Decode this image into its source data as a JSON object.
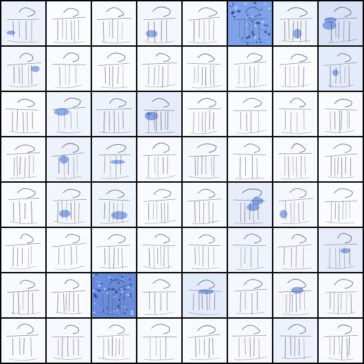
{
  "grid": {
    "rows": 8,
    "cols": 8,
    "stroke_color": "#3a3f4a",
    "accent_blue": "#3d6fd6",
    "background": "#000000",
    "tile_background": "#ffffff",
    "tiles": [
      {
        "tint": "#2f5fd0",
        "tint_level": 0.15,
        "blobs": 1
      },
      {
        "tint": "#2f5fd0",
        "tint_level": 0.03,
        "blobs": 0
      },
      {
        "tint": "#2f5fd0",
        "tint_level": 0.05,
        "blobs": 0
      },
      {
        "tint": "#2f5fd0",
        "tint_level": 0.1,
        "blobs": 1
      },
      {
        "tint": "#2f5fd0",
        "tint_level": 0.05,
        "blobs": 0
      },
      {
        "tint": "#3f73e0",
        "tint_level": 0.75,
        "blobs": 0,
        "textured": true
      },
      {
        "tint": "#2f5fd0",
        "tint_level": 0.12,
        "blobs": 1
      },
      {
        "tint": "#2f5fd0",
        "tint_level": 0.3,
        "blobs": 2
      },
      {
        "tint": "#2f5fd0",
        "tint_level": 0.1,
        "blobs": 1
      },
      {
        "tint": "#2f5fd0",
        "tint_level": 0.05,
        "blobs": 0
      },
      {
        "tint": "#2f5fd0",
        "tint_level": 0.03,
        "blobs": 0
      },
      {
        "tint": "#2f5fd0",
        "tint_level": 0.05,
        "blobs": 0
      },
      {
        "tint": "#2f5fd0",
        "tint_level": 0.05,
        "blobs": 0
      },
      {
        "tint": "#2f5fd0",
        "tint_level": 0.05,
        "blobs": 0
      },
      {
        "tint": "#2f5fd0",
        "tint_level": 0.04,
        "blobs": 0
      },
      {
        "tint": "#6a90e8",
        "tint_level": 0.3,
        "blobs": 1
      },
      {
        "tint": "#2f5fd0",
        "tint_level": 0.04,
        "blobs": 0
      },
      {
        "tint": "#2f5fd0",
        "tint_level": 0.12,
        "blobs": 1
      },
      {
        "tint": "#6a90e8",
        "tint_level": 0.2,
        "blobs": 0
      },
      {
        "tint": "#2f5fd0",
        "tint_level": 0.2,
        "blobs": 2
      },
      {
        "tint": "#2f5fd0",
        "tint_level": 0.04,
        "blobs": 0
      },
      {
        "tint": "#2f5fd0",
        "tint_level": 0.04,
        "blobs": 0
      },
      {
        "tint": "#2f5fd0",
        "tint_level": 0.05,
        "blobs": 0
      },
      {
        "tint": "#2f5fd0",
        "tint_level": 0.05,
        "blobs": 0
      },
      {
        "tint": "#2f5fd0",
        "tint_level": 0.05,
        "blobs": 0
      },
      {
        "tint": "#2f5fd0",
        "tint_level": 0.15,
        "blobs": 1
      },
      {
        "tint": "#2f5fd0",
        "tint_level": 0.12,
        "blobs": 1
      },
      {
        "tint": "#2f5fd0",
        "tint_level": 0.05,
        "blobs": 0
      },
      {
        "tint": "#2f5fd0",
        "tint_level": 0.08,
        "blobs": 0
      },
      {
        "tint": "#2f5fd0",
        "tint_level": 0.04,
        "blobs": 0
      },
      {
        "tint": "#2f5fd0",
        "tint_level": 0.05,
        "blobs": 0
      },
      {
        "tint": "#2f5fd0",
        "tint_level": 0.04,
        "blobs": 0
      },
      {
        "tint": "#2f5fd0",
        "tint_level": 0.04,
        "blobs": 0
      },
      {
        "tint": "#2f5fd0",
        "tint_level": 0.1,
        "blobs": 1
      },
      {
        "tint": "#2f5fd0",
        "tint_level": 0.12,
        "blobs": 1
      },
      {
        "tint": "#2f5fd0",
        "tint_level": 0.04,
        "blobs": 0
      },
      {
        "tint": "#2f5fd0",
        "tint_level": 0.06,
        "blobs": 0
      },
      {
        "tint": "#2f5fd0",
        "tint_level": 0.2,
        "blobs": 2
      },
      {
        "tint": "#2f5fd0",
        "tint_level": 0.08,
        "blobs": 1
      },
      {
        "tint": "#2f5fd0",
        "tint_level": 0.04,
        "blobs": 0
      },
      {
        "tint": "#2f5fd0",
        "tint_level": 0.03,
        "blobs": 0
      },
      {
        "tint": "#2f5fd0",
        "tint_level": 0.04,
        "blobs": 0
      },
      {
        "tint": "#2f5fd0",
        "tint_level": 0.05,
        "blobs": 0
      },
      {
        "tint": "#2f5fd0",
        "tint_level": 0.05,
        "blobs": 0
      },
      {
        "tint": "#2f5fd0",
        "tint_level": 0.06,
        "blobs": 0
      },
      {
        "tint": "#6a90e8",
        "tint_level": 0.18,
        "blobs": 0
      },
      {
        "tint": "#2f5fd0",
        "tint_level": 0.08,
        "blobs": 0
      },
      {
        "tint": "#2f5fd0",
        "tint_level": 0.2,
        "blobs": 1
      },
      {
        "tint": "#2f5fd0",
        "tint_level": 0.06,
        "blobs": 0
      },
      {
        "tint": "#2f5fd0",
        "tint_level": 0.04,
        "blobs": 0
      },
      {
        "tint": "#2f5fd0",
        "tint_level": 0.8,
        "blobs": 0,
        "textured": true
      },
      {
        "tint": "#2f5fd0",
        "tint_level": 0.06,
        "blobs": 0
      },
      {
        "tint": "#6a90e8",
        "tint_level": 0.3,
        "blobs": 1
      },
      {
        "tint": "#6a90e8",
        "tint_level": 0.12,
        "blobs": 0
      },
      {
        "tint": "#2f5fd0",
        "tint_level": 0.08,
        "blobs": 1
      },
      {
        "tint": "#2f5fd0",
        "tint_level": 0.06,
        "blobs": 0
      },
      {
        "tint": "#2f5fd0",
        "tint_level": 0.05,
        "blobs": 0
      },
      {
        "tint": "#6a90e8",
        "tint_level": 0.1,
        "blobs": 0
      },
      {
        "tint": "#6a90e8",
        "tint_level": 0.08,
        "blobs": 0
      },
      {
        "tint": "#2f5fd0",
        "tint_level": 0.05,
        "blobs": 0
      },
      {
        "tint": "#2f5fd0",
        "tint_level": 0.05,
        "blobs": 0
      },
      {
        "tint": "#2f5fd0",
        "tint_level": 0.06,
        "blobs": 0
      },
      {
        "tint": "#6a90e8",
        "tint_level": 0.2,
        "blobs": 0
      },
      {
        "tint": "#2f5fd0",
        "tint_level": 0.05,
        "blobs": 0
      }
    ]
  }
}
